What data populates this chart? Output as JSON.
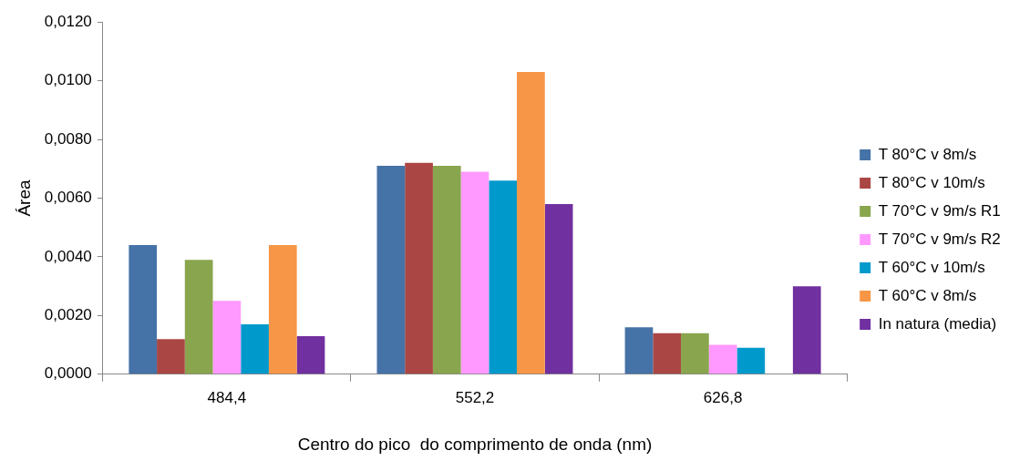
{
  "chart_data": {
    "type": "bar",
    "xlabel": "Centro do pico  do comprimento de onda (nm)",
    "ylabel": "Área",
    "categories": [
      "484,4",
      "552,2",
      "626,8"
    ],
    "series": [
      {
        "name": "T 80°C v 8m/s",
        "color": "#4572a7",
        "values": [
          0.0044,
          0.0071,
          0.0016
        ]
      },
      {
        "name": "T 80°C v 10m/s",
        "color": "#aa4643",
        "values": [
          0.0012,
          0.0072,
          0.0014
        ]
      },
      {
        "name": "T 70°C v 9m/s R1",
        "color": "#89a54e",
        "values": [
          0.0039,
          0.0071,
          0.0014
        ]
      },
      {
        "name": "T 70°C v 9m/s R2",
        "color": "#ff99ff",
        "values": [
          0.0025,
          0.0069,
          0.001
        ]
      },
      {
        "name": "T 60°C v 10m/s",
        "color": "#0099cc",
        "values": [
          0.0017,
          0.0066,
          0.0009
        ]
      },
      {
        "name": "T 60°C v 8m/s",
        "color": "#f79646",
        "values": [
          0.0044,
          0.0103,
          null
        ]
      },
      {
        "name": "In natura (media)",
        "color": "#7030a0",
        "values": [
          0.0013,
          0.0058,
          0.003
        ]
      }
    ],
    "ylim": [
      0,
      0.012
    ],
    "yticks": [
      {
        "value": 0,
        "label": "0,0000"
      },
      {
        "value": 0.002,
        "label": "0,0020"
      },
      {
        "value": 0.004,
        "label": "0,0040"
      },
      {
        "value": 0.006,
        "label": "0,0060"
      },
      {
        "value": 0.008,
        "label": "0,0080"
      },
      {
        "value": 0.01,
        "label": "0,0100"
      },
      {
        "value": 0.012,
        "label": "0,0120"
      }
    ],
    "grid": false,
    "legend": "right"
  }
}
